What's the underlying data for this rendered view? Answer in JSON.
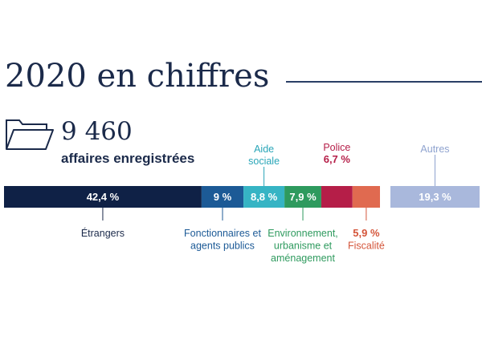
{
  "header": {
    "title": "2020 en chiffres"
  },
  "summary": {
    "number": "9 460",
    "label": "affaires enregistrées"
  },
  "chart_data": {
    "type": "bar",
    "layout": "stacked-horizontal",
    "unit": "%",
    "segments": [
      {
        "category": "Étrangers",
        "value": 42.4,
        "value_label": "42,4 %",
        "color": "#0f2146",
        "label_color": "#1b2a4a",
        "value_inside": true,
        "category_position": "below"
      },
      {
        "category": "Fonctionnaires et agents publics",
        "category_lines": [
          "Fonctionnaires et",
          "agents publics"
        ],
        "value": 9.0,
        "value_label": "9 %",
        "color": "#1c5a96",
        "label_color": "#1c5a96",
        "value_inside": true,
        "category_position": "below"
      },
      {
        "category": "Aide sociale",
        "category_lines": [
          "Aide",
          "sociale"
        ],
        "value": 8.8,
        "value_label": "8,8 %",
        "color": "#36b4c4",
        "label_color": "#2aa6b8",
        "value_inside": true,
        "category_position": "above"
      },
      {
        "category": "Environnement, urbanisme et aménagement",
        "category_lines": [
          "Environnement,",
          "urbanisme et",
          "aménagement"
        ],
        "value": 7.9,
        "value_label": "7,9 %",
        "color": "#2e9a5e",
        "label_color": "#2e9a5e",
        "value_inside": true,
        "category_position": "below"
      },
      {
        "category": "Police",
        "value": 6.7,
        "value_label": "6,7 %",
        "color": "#b51e48",
        "label_color": "#b51e48",
        "value_inside": false,
        "category_position": "above"
      },
      {
        "category": "Fiscalité",
        "value": 5.9,
        "value_label": "5,9 %",
        "color": "#e06a50",
        "label_color": "#d4553a",
        "value_inside": false,
        "category_position": "below"
      },
      {
        "category": "Autres",
        "value": 19.3,
        "value_label": "19,3 %",
        "color": "#a9b8dc",
        "label_color": "#8fa3cf",
        "value_inside": true,
        "category_position": "above"
      }
    ]
  }
}
